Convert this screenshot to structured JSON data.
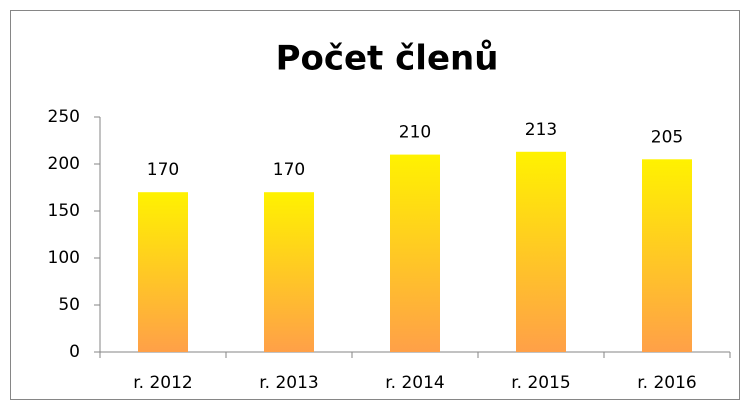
{
  "chart_data": {
    "type": "bar",
    "title": "Počet členů",
    "categories": [
      "r. 2012",
      "r. 2013",
      "r. 2014",
      "r. 2015",
      "r. 2016"
    ],
    "values": [
      170,
      170,
      210,
      213,
      205
    ],
    "gradient": [
      "#fff200",
      "#ffa048"
    ],
    "ylim": [
      0,
      250
    ],
    "yticks": [
      0,
      50,
      100,
      150,
      200,
      250
    ],
    "grid": false,
    "value_labels_shown": true
  }
}
